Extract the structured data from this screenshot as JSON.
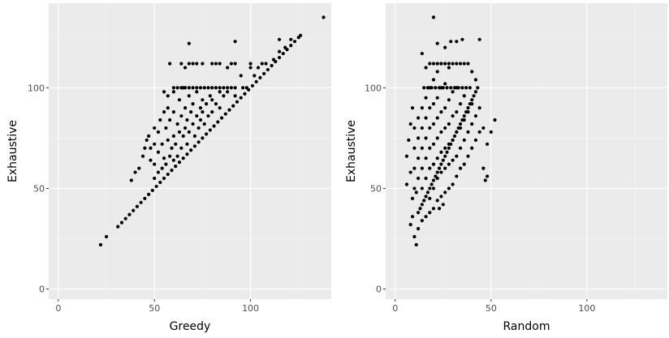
{
  "colors": {
    "panel_background": "#ebebeb",
    "grid_major": "#ffffff",
    "grid_minor": "#f5f5f5",
    "point": "#000000",
    "tick_text": "#4d4d4d"
  },
  "chart_data": [
    {
      "type": "scatter",
      "xlabel": "Greedy",
      "ylabel": "Exhaustive",
      "xlim": [
        -5,
        142
      ],
      "ylim": [
        -5,
        142
      ],
      "xticks": [
        0,
        50,
        100
      ],
      "yticks": [
        0,
        50,
        100
      ],
      "grid": true,
      "points": [
        [
          22,
          22
        ],
        [
          25,
          26
        ],
        [
          31,
          31
        ],
        [
          33,
          33
        ],
        [
          35,
          35
        ],
        [
          37,
          37
        ],
        [
          39,
          39
        ],
        [
          41,
          41
        ],
        [
          43,
          43
        ],
        [
          45,
          45
        ],
        [
          47,
          47
        ],
        [
          49,
          49
        ],
        [
          51,
          51
        ],
        [
          53,
          53
        ],
        [
          55,
          55
        ],
        [
          57,
          57
        ],
        [
          59,
          59
        ],
        [
          61,
          61
        ],
        [
          63,
          63
        ],
        [
          65,
          65
        ],
        [
          67,
          67
        ],
        [
          69,
          69
        ],
        [
          71,
          71
        ],
        [
          73,
          73
        ],
        [
          75,
          75
        ],
        [
          77,
          77
        ],
        [
          79,
          79
        ],
        [
          81,
          81
        ],
        [
          83,
          83
        ],
        [
          85,
          85
        ],
        [
          87,
          87
        ],
        [
          89,
          89
        ],
        [
          91,
          91
        ],
        [
          93,
          93
        ],
        [
          95,
          95
        ],
        [
          97,
          97
        ],
        [
          99,
          99
        ],
        [
          101,
          101
        ],
        [
          103,
          103
        ],
        [
          105,
          105
        ],
        [
          107,
          107
        ],
        [
          109,
          109
        ],
        [
          111,
          111
        ],
        [
          113,
          113
        ],
        [
          115,
          115
        ],
        [
          117,
          117
        ],
        [
          119,
          119
        ],
        [
          121,
          121
        ],
        [
          123,
          123
        ],
        [
          125,
          125
        ],
        [
          126,
          126
        ],
        [
          38,
          54
        ],
        [
          40,
          58
        ],
        [
          42,
          60
        ],
        [
          44,
          66
        ],
        [
          45,
          70
        ],
        [
          46,
          74
        ],
        [
          47,
          76
        ],
        [
          48,
          64
        ],
        [
          48,
          70
        ],
        [
          50,
          55
        ],
        [
          50,
          62
        ],
        [
          50,
          72
        ],
        [
          50,
          80
        ],
        [
          52,
          58
        ],
        [
          52,
          68
        ],
        [
          52,
          78
        ],
        [
          53,
          84
        ],
        [
          54,
          60
        ],
        [
          54,
          72
        ],
        [
          55,
          88
        ],
        [
          55,
          65
        ],
        [
          56,
          80
        ],
        [
          56,
          62
        ],
        [
          57,
          74
        ],
        [
          57,
          90
        ],
        [
          58,
          66
        ],
        [
          58,
          84
        ],
        [
          59,
          70
        ],
        [
          60,
          64
        ],
        [
          60,
          76
        ],
        [
          60,
          88
        ],
        [
          60,
          100
        ],
        [
          61,
          72
        ],
        [
          62,
          82
        ],
        [
          62,
          66
        ],
        [
          63,
          78
        ],
        [
          63,
          94
        ],
        [
          64,
          70
        ],
        [
          64,
          86
        ],
        [
          65,
          76
        ],
        [
          65,
          100
        ],
        [
          66,
          80
        ],
        [
          66,
          90
        ],
        [
          67,
          72
        ],
        [
          67,
          84
        ],
        [
          68,
          78
        ],
        [
          68,
          96
        ],
        [
          69,
          88
        ],
        [
          70,
          82
        ],
        [
          70,
          92
        ],
        [
          71,
          76
        ],
        [
          72,
          86
        ],
        [
          72,
          98
        ],
        [
          73,
          80
        ],
        [
          74,
          90
        ],
        [
          74,
          84
        ],
        [
          75,
          88
        ],
        [
          75,
          94
        ],
        [
          76,
          82
        ],
        [
          77,
          92
        ],
        [
          78,
          86
        ],
        [
          78,
          100
        ],
        [
          79,
          96
        ],
        [
          80,
          88
        ],
        [
          80,
          94
        ],
        [
          82,
          92
        ],
        [
          82,
          100
        ],
        [
          84,
          90
        ],
        [
          84,
          98
        ],
        [
          86,
          96
        ],
        [
          86,
          100
        ],
        [
          88,
          98
        ],
        [
          90,
          100
        ],
        [
          92,
          96
        ],
        [
          95,
          106
        ],
        [
          98,
          100
        ],
        [
          100,
          110
        ],
        [
          102,
          106
        ],
        [
          104,
          110
        ],
        [
          106,
          112
        ],
        [
          108,
          112
        ],
        [
          112,
          114
        ],
        [
          115,
          118
        ],
        [
          118,
          120
        ],
        [
          58,
          112
        ],
        [
          64,
          112
        ],
        [
          66,
          110
        ],
        [
          68,
          112
        ],
        [
          70,
          112
        ],
        [
          72,
          112
        ],
        [
          75,
          112
        ],
        [
          80,
          112
        ],
        [
          82,
          112
        ],
        [
          84,
          112
        ],
        [
          88,
          110
        ],
        [
          90,
          112
        ],
        [
          92,
          112
        ],
        [
          100,
          112
        ],
        [
          68,
          122
        ],
        [
          92,
          123
        ],
        [
          115,
          124
        ],
        [
          121,
          124
        ],
        [
          138,
          135
        ],
        [
          60,
          98
        ],
        [
          62,
          100
        ],
        [
          64,
          100
        ],
        [
          66,
          100
        ],
        [
          68,
          100
        ],
        [
          70,
          100
        ],
        [
          72,
          100
        ],
        [
          74,
          100
        ],
        [
          76,
          100
        ],
        [
          80,
          100
        ],
        [
          84,
          100
        ],
        [
          88,
          100
        ],
        [
          92,
          100
        ],
        [
          96,
          100
        ],
        [
          55,
          98
        ],
        [
          57,
          96
        ]
      ]
    },
    {
      "type": "scatter",
      "xlabel": "Random",
      "ylabel": "Exhaustive",
      "xlim": [
        -5,
        142
      ],
      "ylim": [
        -5,
        142
      ],
      "xticks": [
        0,
        50,
        100
      ],
      "yticks": [
        0,
        50,
        100
      ],
      "grid": true,
      "points": [
        [
          11,
          22
        ],
        [
          10,
          26
        ],
        [
          8,
          32
        ],
        [
          9,
          36
        ],
        [
          12,
          38
        ],
        [
          13,
          40
        ],
        [
          14,
          42
        ],
        [
          15,
          44
        ],
        [
          16,
          46
        ],
        [
          17,
          48
        ],
        [
          18,
          50
        ],
        [
          19,
          52
        ],
        [
          20,
          54
        ],
        [
          21,
          56
        ],
        [
          22,
          58
        ],
        [
          23,
          60
        ],
        [
          24,
          62
        ],
        [
          25,
          64
        ],
        [
          26,
          66
        ],
        [
          27,
          68
        ],
        [
          28,
          70
        ],
        [
          29,
          72
        ],
        [
          30,
          74
        ],
        [
          31,
          76
        ],
        [
          32,
          78
        ],
        [
          33,
          80
        ],
        [
          34,
          82
        ],
        [
          35,
          84
        ],
        [
          36,
          86
        ],
        [
          37,
          88
        ],
        [
          38,
          90
        ],
        [
          39,
          92
        ],
        [
          40,
          94
        ],
        [
          41,
          96
        ],
        [
          42,
          98
        ],
        [
          43,
          100
        ],
        [
          10,
          50
        ],
        [
          10,
          60
        ],
        [
          10,
          70
        ],
        [
          10,
          80
        ],
        [
          12,
          55
        ],
        [
          12,
          65
        ],
        [
          12,
          75
        ],
        [
          12,
          85
        ],
        [
          14,
          50
        ],
        [
          14,
          60
        ],
        [
          14,
          70
        ],
        [
          14,
          80
        ],
        [
          14,
          90
        ],
        [
          16,
          55
        ],
        [
          16,
          65
        ],
        [
          16,
          75
        ],
        [
          16,
          85
        ],
        [
          16,
          95
        ],
        [
          18,
          45
        ],
        [
          18,
          60
        ],
        [
          18,
          70
        ],
        [
          18,
          80
        ],
        [
          18,
          90
        ],
        [
          18,
          100
        ],
        [
          20,
          40
        ],
        [
          20,
          50
        ],
        [
          20,
          62
        ],
        [
          20,
          72
        ],
        [
          20,
          82
        ],
        [
          20,
          92
        ],
        [
          20,
          104
        ],
        [
          22,
          44
        ],
        [
          22,
          55
        ],
        [
          22,
          65
        ],
        [
          22,
          75
        ],
        [
          22,
          85
        ],
        [
          22,
          95
        ],
        [
          22,
          108
        ],
        [
          24,
          46
        ],
        [
          24,
          58
        ],
        [
          24,
          68
        ],
        [
          24,
          78
        ],
        [
          24,
          88
        ],
        [
          24,
          100
        ],
        [
          24,
          112
        ],
        [
          26,
          48
        ],
        [
          26,
          60
        ],
        [
          26,
          70
        ],
        [
          26,
          80
        ],
        [
          26,
          90
        ],
        [
          26,
          102
        ],
        [
          28,
          50
        ],
        [
          28,
          62
        ],
        [
          28,
          72
        ],
        [
          28,
          82
        ],
        [
          28,
          94
        ],
        [
          28,
          110
        ],
        [
          30,
          52
        ],
        [
          30,
          64
        ],
        [
          30,
          74
        ],
        [
          30,
          86
        ],
        [
          30,
          98
        ],
        [
          32,
          56
        ],
        [
          32,
          66
        ],
        [
          32,
          78
        ],
        [
          32,
          88
        ],
        [
          32,
          100
        ],
        [
          34,
          60
        ],
        [
          34,
          70
        ],
        [
          34,
          80
        ],
        [
          34,
          92
        ],
        [
          36,
          62
        ],
        [
          36,
          74
        ],
        [
          36,
          84
        ],
        [
          36,
          96
        ],
        [
          38,
          66
        ],
        [
          38,
          78
        ],
        [
          38,
          88
        ],
        [
          40,
          70
        ],
        [
          40,
          82
        ],
        [
          40,
          92
        ],
        [
          42,
          74
        ],
        [
          42,
          86
        ],
        [
          44,
          78
        ],
        [
          44,
          90
        ],
        [
          46,
          80
        ],
        [
          46,
          60
        ],
        [
          48,
          56
        ],
        [
          48,
          72
        ],
        [
          52,
          84
        ],
        [
          50,
          78
        ],
        [
          47,
          54
        ],
        [
          6,
          66
        ],
        [
          7,
          74
        ],
        [
          8,
          58
        ],
        [
          8,
          82
        ],
        [
          6,
          52
        ],
        [
          9,
          90
        ],
        [
          15,
          100
        ],
        [
          17,
          100
        ],
        [
          19,
          100
        ],
        [
          21,
          100
        ],
        [
          23,
          100
        ],
        [
          25,
          100
        ],
        [
          27,
          100
        ],
        [
          29,
          100
        ],
        [
          31,
          100
        ],
        [
          33,
          100
        ],
        [
          35,
          100
        ],
        [
          37,
          100
        ],
        [
          39,
          100
        ],
        [
          18,
          112
        ],
        [
          20,
          112
        ],
        [
          22,
          112
        ],
        [
          24,
          112
        ],
        [
          26,
          112
        ],
        [
          28,
          112
        ],
        [
          30,
          112
        ],
        [
          32,
          112
        ],
        [
          34,
          112
        ],
        [
          36,
          112
        ],
        [
          38,
          112
        ],
        [
          14,
          117
        ],
        [
          32,
          123
        ],
        [
          29,
          123
        ],
        [
          35,
          124
        ],
        [
          44,
          124
        ],
        [
          20,
          135
        ],
        [
          22,
          122
        ],
        [
          26,
          120
        ],
        [
          16,
          110
        ],
        [
          40,
          108
        ],
        [
          42,
          104
        ],
        [
          12,
          30
        ],
        [
          14,
          34
        ],
        [
          16,
          36
        ],
        [
          18,
          38
        ],
        [
          23,
          40
        ],
        [
          25,
          42
        ],
        [
          9,
          45
        ],
        [
          11,
          48
        ]
      ]
    }
  ]
}
